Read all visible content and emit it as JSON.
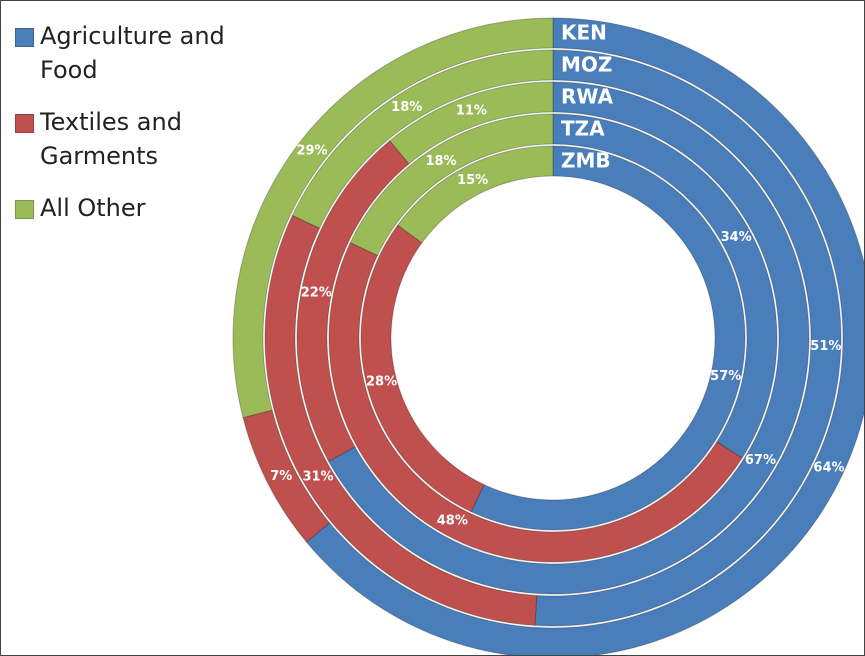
{
  "chart_data": {
    "type": "multi-donut",
    "categories": [
      "KEN",
      "MOZ",
      "RWA",
      "TZA",
      "ZMB"
    ],
    "series": [
      {
        "name": "Agriculture and Food",
        "color": "#4a7ebb",
        "values": [
          64,
          51,
          67,
          34,
          57
        ],
        "value_labels": [
          "64%",
          "51%",
          "67%",
          "34%",
          "57%"
        ]
      },
      {
        "name": "Textiles and Garments",
        "color": "#c0504d",
        "values": [
          7,
          31,
          22,
          48,
          28
        ],
        "value_labels": [
          "7%",
          "31%",
          "22%",
          "48%",
          "28%"
        ]
      },
      {
        "name": "All Other",
        "color": "#9bbb59",
        "values": [
          29,
          18,
          11,
          18,
          15
        ],
        "value_labels": [
          "29%",
          "18%",
          "11%",
          "18%",
          "15%"
        ]
      }
    ],
    "legend": "top-left"
  }
}
